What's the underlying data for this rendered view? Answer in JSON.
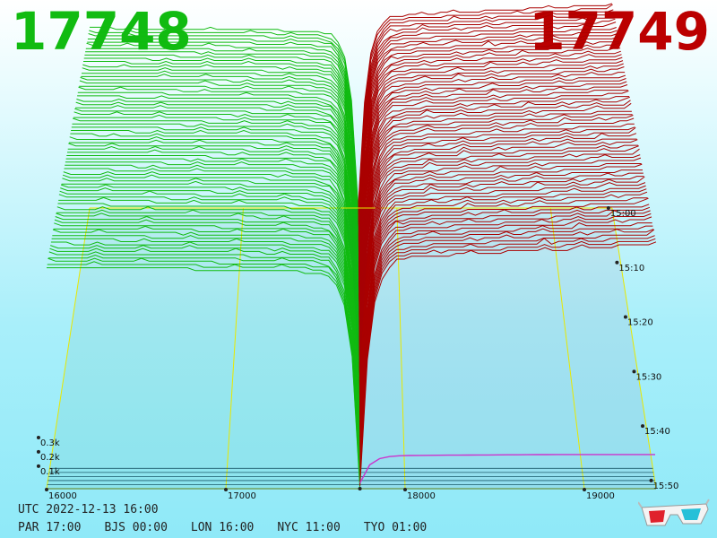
{
  "header": {
    "bid_price": "17748",
    "ask_price": "17749",
    "bid_color": "#11bb11",
    "ask_color": "#bb0000"
  },
  "footer": {
    "utc_label": "UTC 2022-12-13 16:00",
    "zones": [
      {
        "label": "PAR 17:00"
      },
      {
        "label": "BJS 00:00"
      },
      {
        "label": "LON 16:00"
      },
      {
        "label": "NYC 11:00"
      },
      {
        "label": "TYO 01:00"
      }
    ],
    "glasses_icon": "3d-glasses-icon"
  },
  "chart_data": {
    "type": "area",
    "subtype": "3d-order-book-depth",
    "x_axis": {
      "ticks": [
        "16000",
        "17000",
        "18000",
        "19000"
      ],
      "range": [
        16000,
        19500
      ]
    },
    "y_axis": {
      "ticks": [
        "0.1k",
        "0.2k",
        "0.3k"
      ]
    },
    "time_axis": {
      "ticks": [
        "15:00",
        "15:10",
        "15:20",
        "15:30",
        "15:40",
        "15:50"
      ]
    },
    "mid_price": 17748,
    "series": [
      {
        "name": "bids",
        "color": "#11bb11"
      },
      {
        "name": "asks",
        "color": "#aa0000"
      }
    ]
  }
}
